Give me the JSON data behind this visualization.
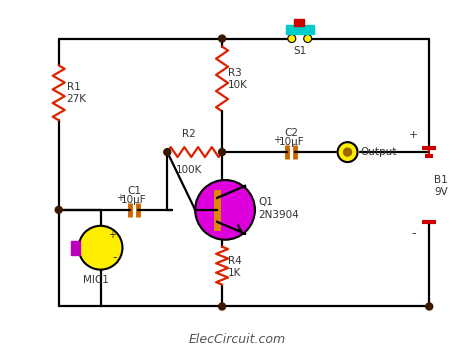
{
  "bg_color": "#ffffff",
  "wire_color": "#000000",
  "resistor_color": "#dd2200",
  "capacitor_color": "#cc6600",
  "transistor_color": "#dd00dd",
  "transistor_stripe_color": "#dd8800",
  "mic_body_color": "#ffee00",
  "mic_ring_color": "#bb00bb",
  "output_color": "#ffee00",
  "output_inner_color": "#996600",
  "battery_color": "#cc0000",
  "switch_body_color": "#00cccc",
  "switch_knob_color": "#cc0000",
  "switch_terminal_color": "#ffee00",
  "node_color": "#3a1800",
  "watermark": "ElecCircuit.com",
  "labels": {
    "R1": "R1",
    "R1_val": "27K",
    "R2": "R2",
    "R2_val": "100K",
    "R3": "R3",
    "R3_val": "10K",
    "R4": "R4",
    "R4_val": "1K",
    "C1": "C1",
    "C1_val": "10μF",
    "C2": "C2",
    "C2_val": "10μF",
    "Q1": "Q1",
    "Q1_val": "2N3904",
    "B1": "B1",
    "B1_val": "9V",
    "S1": "S1",
    "MIC1": "MIC1",
    "Output": "Output"
  }
}
